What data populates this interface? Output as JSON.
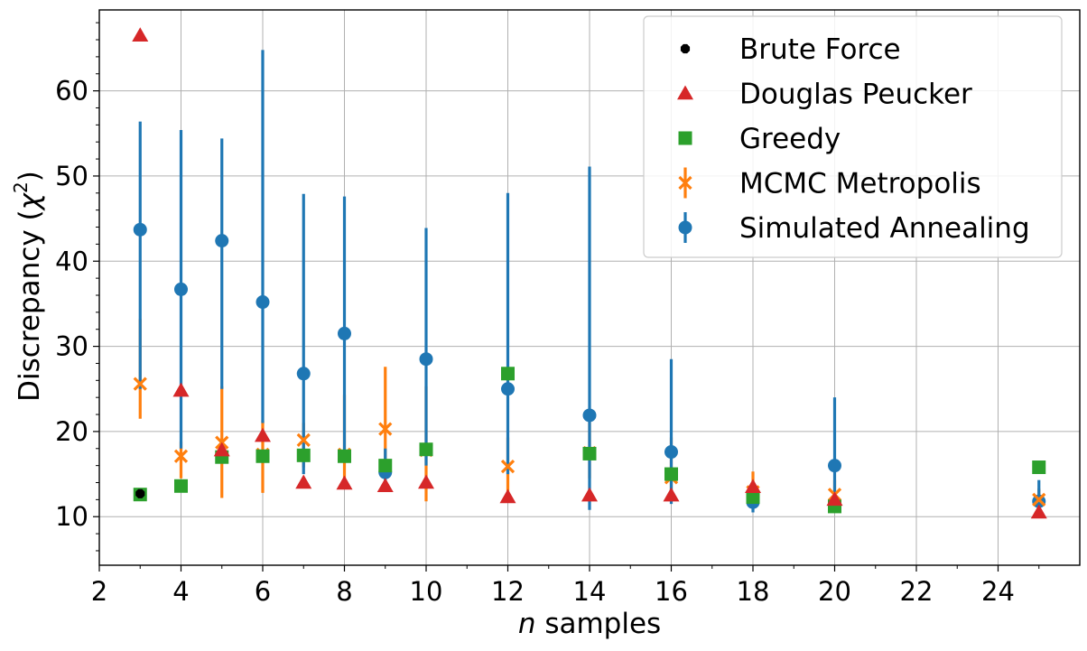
{
  "chart_data": {
    "type": "scatter",
    "xlabel_var": "n",
    "xlabel_rest": " samples",
    "ylabel_main": "Discrepancy (",
    "ylabel_chi": "χ",
    "ylabel_sup": "2",
    "ylabel_close": ")",
    "xlim": [
      2,
      26
    ],
    "ylim": [
      4.3,
      69.5
    ],
    "xticks": [
      2,
      4,
      6,
      8,
      10,
      12,
      14,
      16,
      18,
      20,
      22,
      24
    ],
    "yticks": [
      10,
      20,
      30,
      40,
      50,
      60
    ],
    "grid": true,
    "legend_position": "top-right",
    "series": [
      {
        "name": "Brute Force",
        "marker": "octagon",
        "color": "#000000",
        "x": [
          3
        ],
        "y": [
          12.7
        ]
      },
      {
        "name": "Douglas Peucker",
        "marker": "triangle",
        "color": "#d62728",
        "x": [
          3,
          4,
          5,
          6,
          7,
          8,
          9,
          10,
          12,
          14,
          16,
          18,
          20,
          25
        ],
        "y": [
          66.5,
          24.8,
          17.8,
          19.5,
          14.0,
          13.9,
          13.6,
          14.0,
          12.3,
          12.5,
          12.5,
          13.5,
          12.0,
          10.5
        ]
      },
      {
        "name": "Greedy",
        "marker": "square",
        "color": "#2ca02c",
        "x": [
          3,
          4,
          5,
          6,
          7,
          8,
          9,
          10,
          12,
          14,
          16,
          18,
          20,
          25
        ],
        "y": [
          12.6,
          13.6,
          17.0,
          17.1,
          17.2,
          17.1,
          16.0,
          17.9,
          26.8,
          17.4,
          15.0,
          12.3,
          11.2,
          15.8
        ]
      },
      {
        "name": "MCMC Metropolis",
        "marker": "x",
        "color": "#ff7f0e",
        "x": [
          3,
          4,
          5,
          6,
          7,
          8,
          9,
          10,
          12,
          14,
          16,
          18,
          20,
          25
        ],
        "y": [
          25.6,
          17.1,
          18.7,
          17.3,
          19.0,
          17.3,
          20.3,
          17.8,
          15.9,
          17.5,
          14.6,
          12.9,
          12.6,
          12.0
        ],
        "err_low": [
          21.5,
          14.5,
          12.2,
          12.8,
          15.8,
          14.0,
          16.8,
          11.8,
          12.5,
          14.5,
          12.0,
          11.5,
          11.0,
          11.0
        ],
        "err_high": [
          33.2,
          18.8,
          25.3,
          21.3,
          21.0,
          24.3,
          27.6,
          25.3,
          19.3,
          21.6,
          19.3,
          15.3,
          14.3,
          13.3
        ]
      },
      {
        "name": "Simulated Annealing",
        "marker": "circle",
        "color": "#1f77b4",
        "x": [
          3,
          4,
          5,
          6,
          7,
          8,
          9,
          10,
          12,
          14,
          16,
          18,
          20,
          25
        ],
        "y": [
          43.7,
          36.7,
          42.4,
          35.2,
          26.8,
          31.5,
          15.2,
          28.5,
          25.0,
          21.9,
          17.6,
          11.7,
          16.0,
          11.8
        ],
        "err_low": [
          25.0,
          18.0,
          25.0,
          21.0,
          15.0,
          17.0,
          14.0,
          16.0,
          15.0,
          10.8,
          11.5,
          10.5,
          12.0,
          11.0
        ],
        "err_high": [
          56.4,
          55.4,
          54.4,
          64.8,
          47.9,
          47.6,
          18.0,
          43.9,
          48.0,
          51.1,
          28.5,
          13.0,
          24.0,
          14.3
        ]
      }
    ]
  }
}
